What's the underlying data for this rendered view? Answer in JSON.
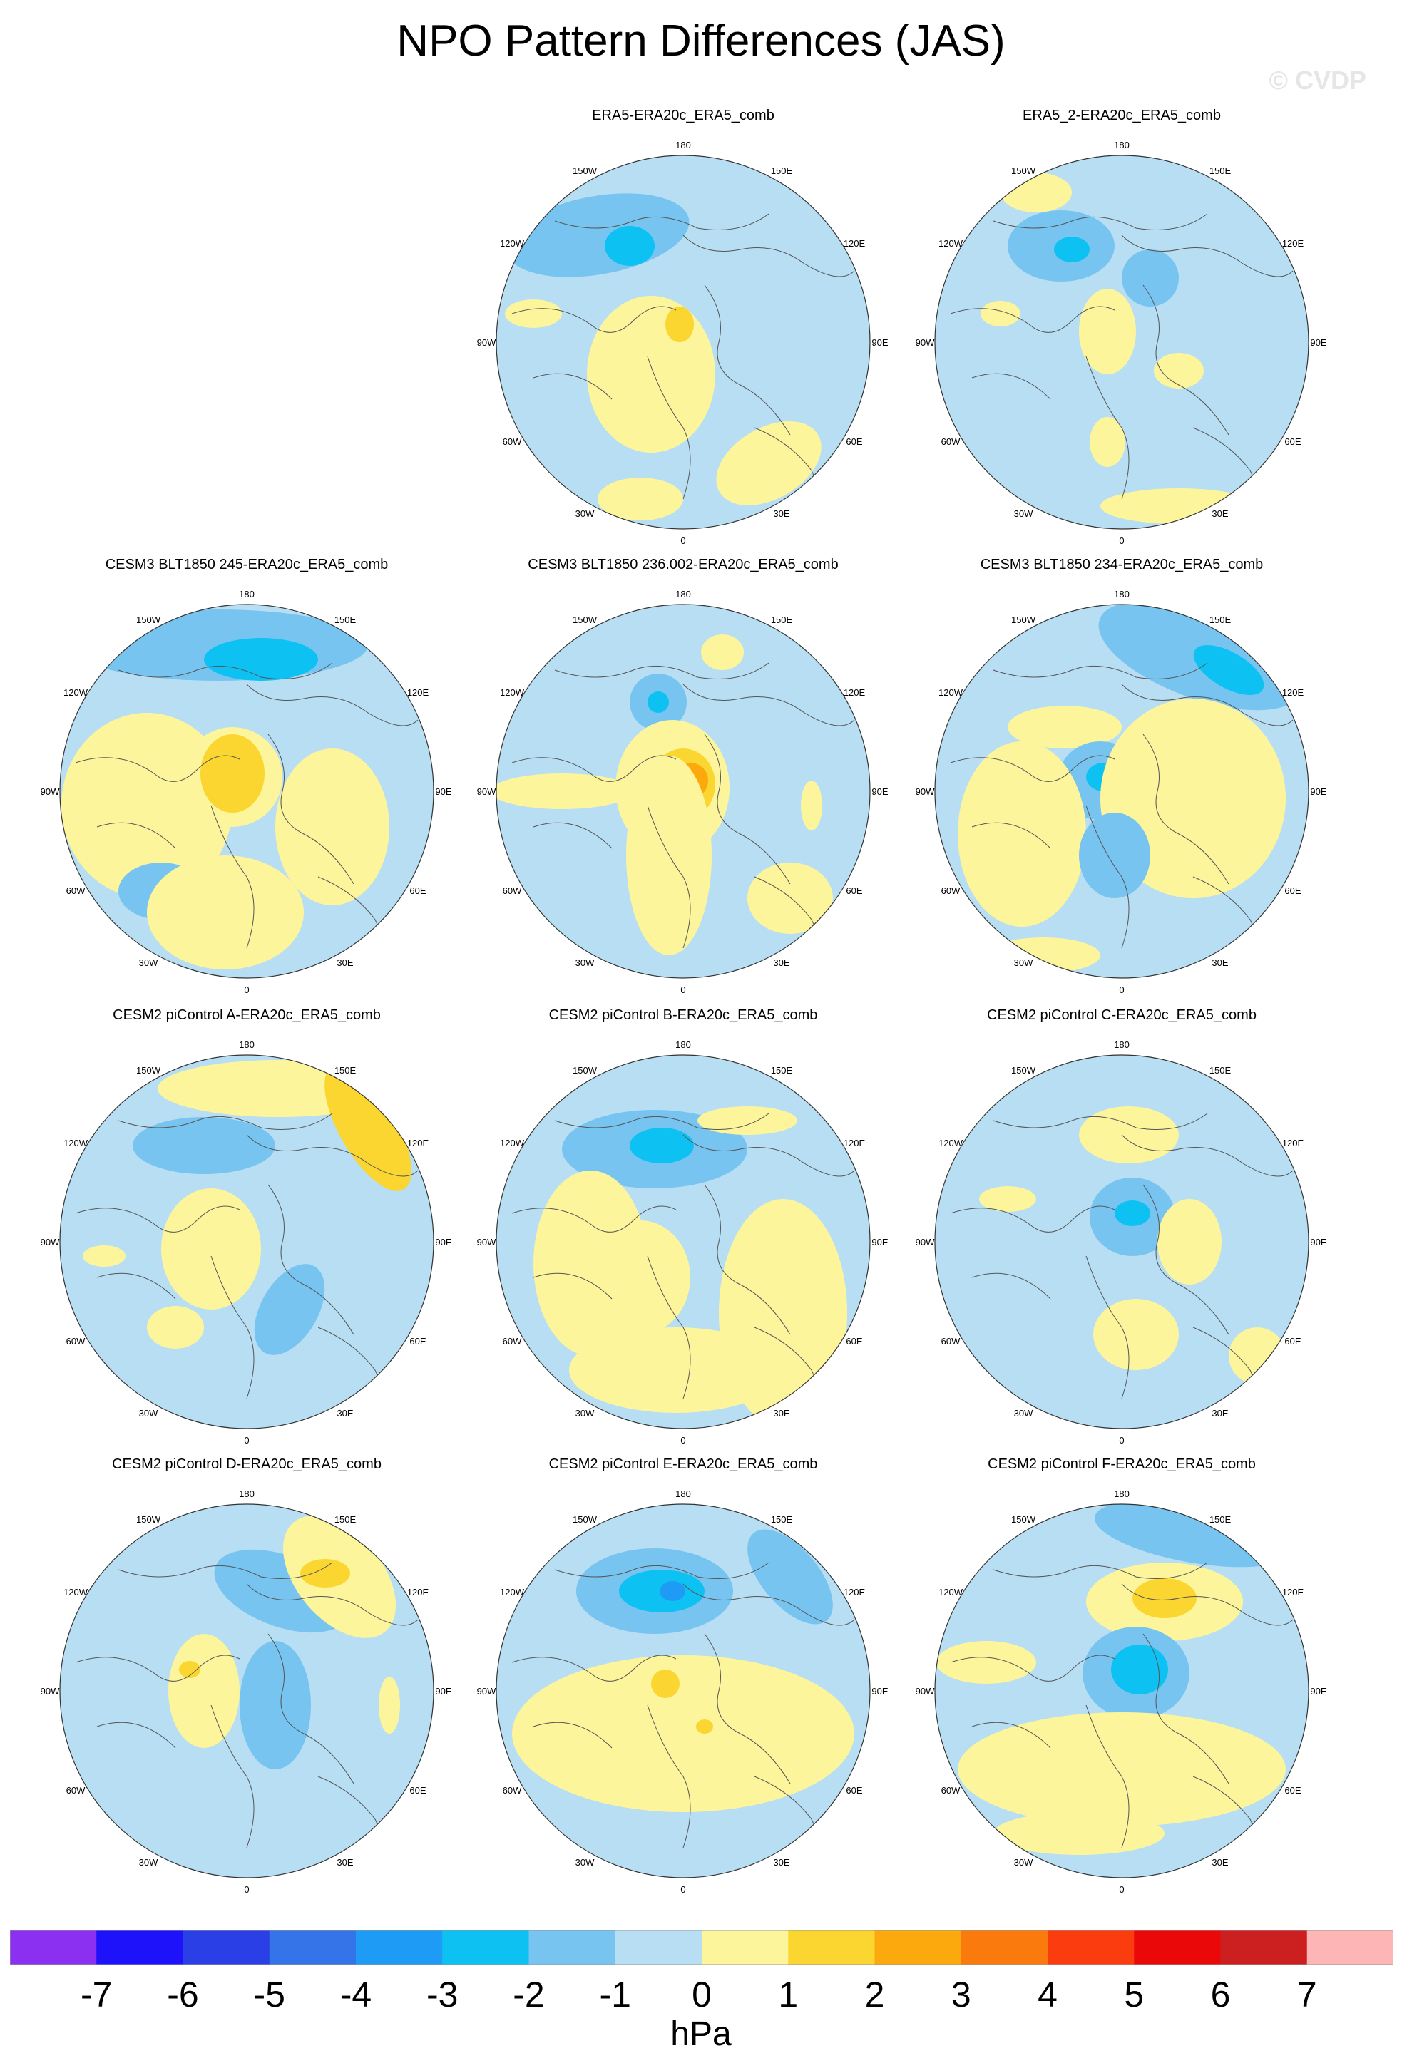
{
  "title": "NPO Pattern Differences (JAS)",
  "watermark": "© CVDP",
  "colors": {
    "ocean_base": "#b7def2",
    "neg1": "#78c4f0",
    "neg2": "#0dc1f2",
    "neg3": "#1e9bf5",
    "pos1": "#fdf59c",
    "pos2": "#fbd530",
    "pos3": "#fca90e",
    "coast": "#555555"
  },
  "map_labels": {
    "top": "180",
    "bottom": "0",
    "ul1": "150W",
    "ur1": "150E",
    "ul2": "120W",
    "ur2": "120E",
    "left": "90W",
    "right": "90E",
    "ll2": "60W",
    "lr2": "60E",
    "ll1": "30W",
    "lr1": "30E"
  },
  "panels": [
    {
      "title": "ERA5-ERA20c_ERA5_comb"
    },
    {
      "title": "ERA5_2-ERA20c_ERA5_comb"
    },
    {
      "title": "CESM3 BLT1850 245-ERA20c_ERA5_comb"
    },
    {
      "title": "CESM3 BLT1850 236.002-ERA20c_ERA5_comb"
    },
    {
      "title": "CESM3 BLT1850 234-ERA20c_ERA5_comb"
    },
    {
      "title": "CESM2 piControl A-ERA20c_ERA5_comb"
    },
    {
      "title": "CESM2 piControl B-ERA20c_ERA5_comb"
    },
    {
      "title": "CESM2 piControl C-ERA20c_ERA5_comb"
    },
    {
      "title": "CESM2 piControl D-ERA20c_ERA5_comb"
    },
    {
      "title": "CESM2 piControl E-ERA20c_ERA5_comb"
    },
    {
      "title": "CESM2 piControl F-ERA20c_ERA5_comb"
    }
  ],
  "colorbar": {
    "labels": [
      "-7",
      "-6",
      "-5",
      "-4",
      "-3",
      "-2",
      "-1",
      "0",
      "1",
      "2",
      "3",
      "4",
      "5",
      "6",
      "7"
    ],
    "colors": [
      "#8b2ff0",
      "#1d12fa",
      "#2a3fe6",
      "#3573e8",
      "#1e9bf5",
      "#0dc1f2",
      "#78c4f0",
      "#b7def2",
      "#fdf59c",
      "#fbd530",
      "#fca90e",
      "#fb7a0d",
      "#fb3c0e",
      "#ea0808",
      "#cc1f1f",
      "#fdb5b5"
    ],
    "units": "hPa"
  }
}
